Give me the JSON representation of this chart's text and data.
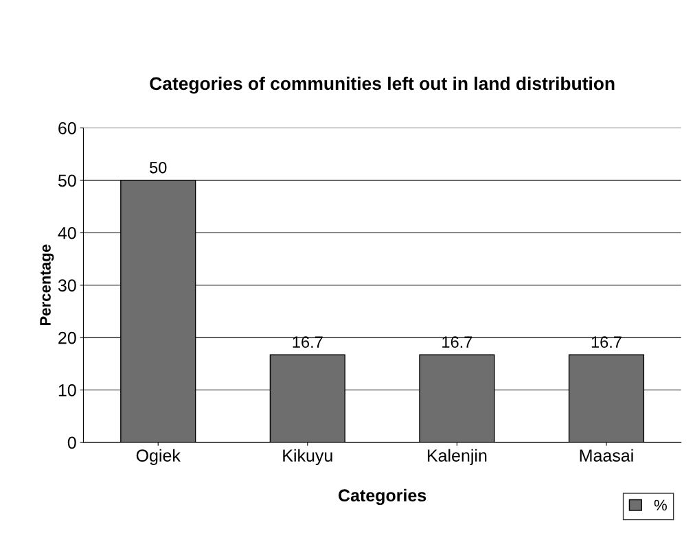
{
  "chart_data": {
    "type": "bar",
    "title": "Categories of communities left out in land distribution",
    "xlabel": "Categories",
    "ylabel": "Percentage",
    "categories": [
      "Ogiek",
      "Kikuyu",
      "Kalenjin",
      "Maasai"
    ],
    "series": [
      {
        "name": "%",
        "color": "#6e6e6e",
        "values": [
          50,
          16.7,
          16.7,
          16.7
        ]
      }
    ],
    "data_labels": true,
    "ylim": [
      0,
      60
    ],
    "yticks": [
      0,
      10,
      20,
      30,
      40,
      50,
      60
    ],
    "grid": "y",
    "legend": "bottom right"
  }
}
